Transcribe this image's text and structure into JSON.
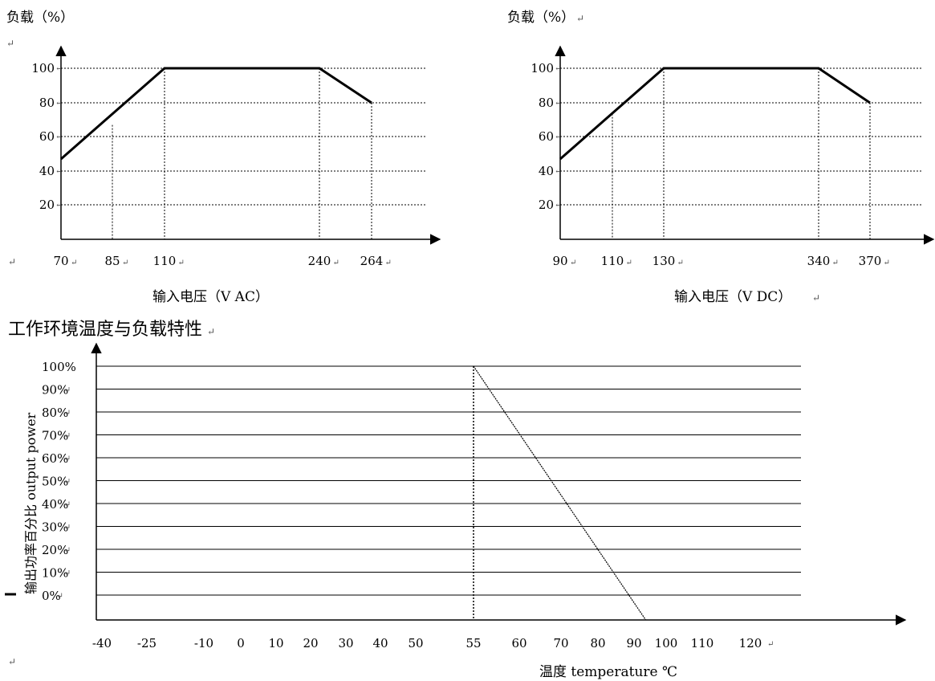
{
  "charts": [
    {
      "type": "line",
      "ylabel": "负载（%）",
      "xlabel": "输入电压（V AC）",
      "y_ticks": [
        "100",
        "80",
        "60",
        "40",
        "20"
      ],
      "x_ticks": [
        "70",
        "85",
        "110",
        "240",
        "264"
      ],
      "series": [
        {
          "x": [
            70,
            110,
            240,
            264
          ],
          "y": [
            47,
            100,
            100,
            80
          ]
        }
      ],
      "grid": "dotted"
    },
    {
      "type": "line",
      "ylabel": "负载（%）",
      "xlabel": "输入电压（V DC）",
      "y_ticks": [
        "100",
        "80",
        "60",
        "40",
        "20"
      ],
      "x_ticks": [
        "90",
        "110",
        "130",
        "340",
        "370"
      ],
      "series": [
        {
          "x": [
            90,
            130,
            340,
            370
          ],
          "y": [
            47,
            100,
            100,
            80
          ]
        }
      ],
      "grid": "dotted"
    }
  ],
  "temperature_chart": {
    "type": "line",
    "title": "工作环境温度与负载特性",
    "ylabel": "输出功率百分比 output power",
    "xlabel": "温度 temperature ℃",
    "y_ticks": [
      "100%",
      "90%",
      "80%",
      "70%",
      "60%",
      "50%",
      "40%",
      "30%",
      "20%",
      "10%",
      "0%"
    ],
    "x_ticks": [
      "-40",
      "-25",
      "-10",
      "0",
      "10",
      "20",
      "30",
      "40",
      "50",
      "55",
      "60",
      "70",
      "80",
      "90",
      "100",
      "110",
      "120"
    ],
    "series": [
      {
        "x": [
          55,
          92
        ],
        "y": [
          100,
          0
        ]
      }
    ],
    "grid": "solid"
  }
}
